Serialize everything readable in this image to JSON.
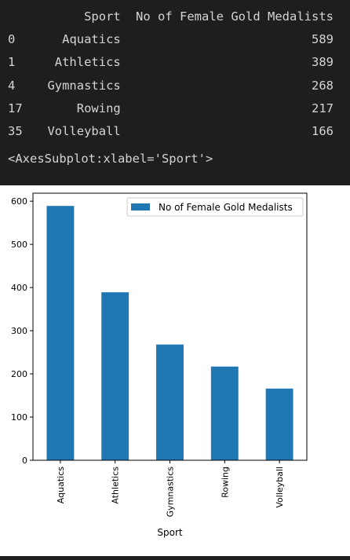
{
  "table": {
    "headers": [
      "",
      "Sport",
      "No of Female Gold Medalists"
    ],
    "rows": [
      {
        "index": "0",
        "sport": "Aquatics",
        "count": "589"
      },
      {
        "index": "1",
        "sport": "Athletics",
        "count": "389"
      },
      {
        "index": "4",
        "sport": "Gymnastics",
        "count": "268"
      },
      {
        "index": "17",
        "sport": "Rowing",
        "count": "217"
      },
      {
        "index": "35",
        "sport": "Volleyball",
        "count": "166"
      }
    ]
  },
  "repr_text": "<AxesSubplot:xlabel='Sport'>",
  "chart_data": {
    "type": "bar",
    "categories": [
      "Aquatics",
      "Athletics",
      "Gymnastics",
      "Rowing",
      "Volleyball"
    ],
    "series": [
      {
        "name": "No of Female Gold Medalists",
        "values": [
          589,
          389,
          268,
          217,
          166
        ],
        "color": "#1f77b4"
      }
    ],
    "xlabel": "Sport",
    "ylabel": "",
    "ylim": [
      0,
      618.45
    ],
    "yticks": [
      0,
      100,
      200,
      300,
      400,
      500,
      600
    ],
    "legend": "top-right",
    "grid": false
  },
  "colors": {
    "background_dark": "#1e1e1e",
    "text_light": "#d4d4d4",
    "bar": "#1f77b4"
  }
}
